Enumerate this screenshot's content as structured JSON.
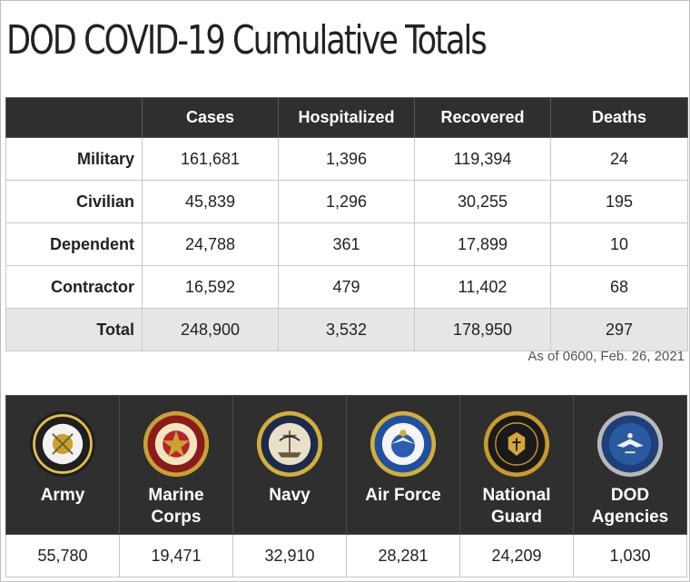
{
  "title": "DOD COVID-19 Cumulative Totals",
  "totals": {
    "headers": [
      "",
      "Cases",
      "Hospitalized",
      "Recovered",
      "Deaths"
    ],
    "rows": [
      {
        "label": "Military",
        "cases": "161,681",
        "hospitalized": "1,396",
        "recovered": "119,394",
        "deaths": "24"
      },
      {
        "label": "Civilian",
        "cases": "45,839",
        "hospitalized": "1,296",
        "recovered": "30,255",
        "deaths": "195"
      },
      {
        "label": "Dependent",
        "cases": "24,788",
        "hospitalized": "361",
        "recovered": "17,899",
        "deaths": "10"
      },
      {
        "label": "Contractor",
        "cases": "16,592",
        "hospitalized": "479",
        "recovered": "11,402",
        "deaths": "68"
      },
      {
        "label": "Total",
        "cases": "248,900",
        "hospitalized": "3,532",
        "recovered": "178,950",
        "deaths": "297"
      }
    ]
  },
  "as_of": "As of 0600, Feb. 26, 2021",
  "branches": [
    {
      "name": "Army",
      "value": "55,780",
      "icon": "army-seal-icon",
      "colors": {
        "outer": "#1f1f1f",
        "ring": "#e3c04a",
        "inner": "#f2f2f2",
        "center": "#c9a227"
      }
    },
    {
      "name": "Marine Corps",
      "value": "19,471",
      "icon": "marine-corps-seal-icon",
      "colors": {
        "outer": "#c8a233",
        "ring": "#8b1a1a",
        "inner": "#f2e6c0",
        "center": "#b8222a"
      }
    },
    {
      "name": "Navy",
      "value": "32,910",
      "icon": "navy-seal-icon",
      "colors": {
        "outer": "#d4af37",
        "ring": "#1c2a4d",
        "inner": "#e8e0c8",
        "center": "#6b5a3a"
      }
    },
    {
      "name": "Air Force",
      "value": "28,281",
      "icon": "air-force-seal-icon",
      "colors": {
        "outer": "#d4af37",
        "ring": "#1f4fa0",
        "inner": "#f5f5f5",
        "center": "#2a5db0"
      }
    },
    {
      "name": "National Guard",
      "value": "24,209",
      "icon": "national-guard-seal-icon",
      "colors": {
        "outer": "#c99a2e",
        "ring": "#1a1a1a",
        "inner": "#1a1a1a",
        "center": "#d4a634"
      }
    },
    {
      "name": "DOD Agencies",
      "value": "1,030",
      "icon": "dod-seal-icon",
      "colors": {
        "outer": "#b8b8b8",
        "ring": "#1f3f7a",
        "inner": "#2a5aa0",
        "center": "#f0f0f0"
      }
    }
  ]
}
